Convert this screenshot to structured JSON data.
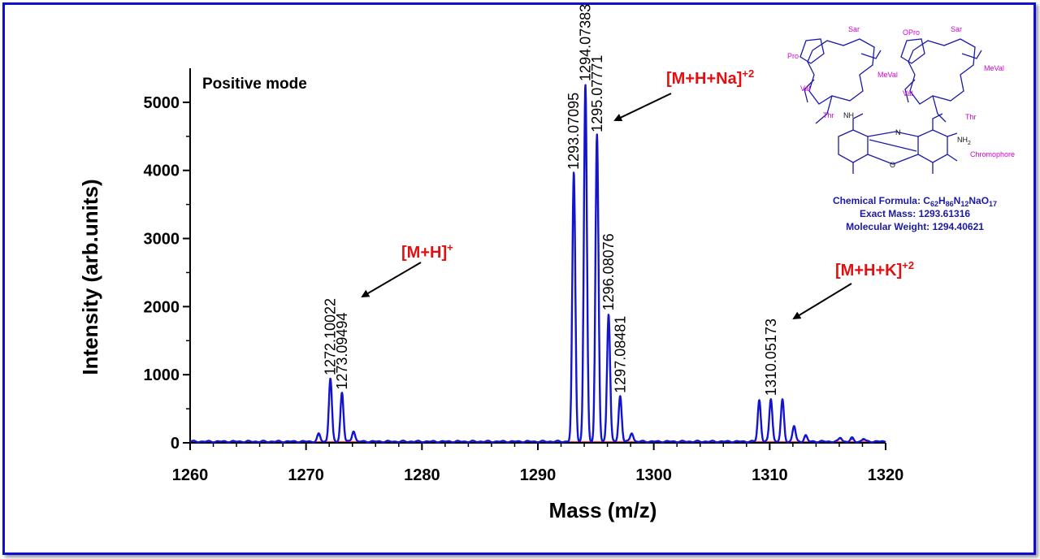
{
  "chart_data": {
    "type": "line",
    "xlabel": "Mass (m/z)",
    "ylabel": "Intensity (arb.units)",
    "xlim": [
      1260,
      1320
    ],
    "ylim": [
      0,
      5500
    ],
    "x_ticks": [
      1260,
      1270,
      1280,
      1290,
      1300,
      1310,
      1320
    ],
    "y_ticks": [
      0,
      1000,
      2000,
      3000,
      4000,
      5000
    ],
    "grid": false,
    "legend": "none",
    "mode_label": "Positive mode",
    "peaks": [
      {
        "x": 1271.1,
        "y": 110
      },
      {
        "x": 1272.1,
        "y": 930
      },
      {
        "x": 1273.1,
        "y": 720
      },
      {
        "x": 1274.1,
        "y": 160
      },
      {
        "x": 1293.1,
        "y": 3950
      },
      {
        "x": 1294.1,
        "y": 5250
      },
      {
        "x": 1295.1,
        "y": 4500
      },
      {
        "x": 1296.1,
        "y": 1880
      },
      {
        "x": 1297.1,
        "y": 670
      },
      {
        "x": 1298.1,
        "y": 130
      },
      {
        "x": 1309.1,
        "y": 610
      },
      {
        "x": 1310.1,
        "y": 630
      },
      {
        "x": 1311.1,
        "y": 610
      },
      {
        "x": 1312.1,
        "y": 230
      },
      {
        "x": 1313.1,
        "y": 90
      },
      {
        "x": 1316.1,
        "y": 60
      },
      {
        "x": 1317.1,
        "y": 50
      },
      {
        "x": 1318.1,
        "y": 40
      }
    ],
    "peak_labels": [
      {
        "text": "1272.10022",
        "x": 1272.1,
        "y": 930
      },
      {
        "text": "1273.09494",
        "x": 1273.1,
        "y": 720
      },
      {
        "text": "1293.07095",
        "x": 1293.1,
        "y": 3950
      },
      {
        "text": "1294.07383",
        "x": 1294.1,
        "y": 5250
      },
      {
        "text": "1295.07771",
        "x": 1295.1,
        "y": 4500
      },
      {
        "text": "1296.08076",
        "x": 1296.1,
        "y": 1880
      },
      {
        "text": "1297.08481",
        "x": 1297.1,
        "y": 670
      },
      {
        "text": "1310.05173",
        "x": 1310.1,
        "y": 630
      }
    ],
    "annotations": [
      {
        "base": "[M+H]",
        "sup": "+"
      },
      {
        "base": "[M+H+Na]",
        "sup": "+2"
      },
      {
        "base": "[M+H+K]",
        "sup": "+2"
      }
    ],
    "colors": {
      "spectrum": "#1414cc",
      "baseline": "#ff4040",
      "annotation": "#e01010",
      "frame": "#1010cc"
    }
  },
  "structure": {
    "residues": [
      "Sar",
      "Sar",
      "Pro",
      "OPro",
      "MeVal",
      "MeVal",
      "Val",
      "Val",
      "Thr",
      "Thr",
      "Chromophore"
    ],
    "atoms": {
      "n": "N",
      "o": "O",
      "nh": "NH",
      "nh2": "NH",
      "nh2_sub": "2"
    },
    "chemical_formula_label": "Chemical Formula: ",
    "formula_parts": [
      "C",
      "62",
      "H",
      "86",
      "N",
      "12",
      "NaO",
      "17"
    ],
    "exact_mass": "Exact Mass: 1293.61316",
    "molecular_weight": "Molecular Weight: 1294.40621"
  }
}
